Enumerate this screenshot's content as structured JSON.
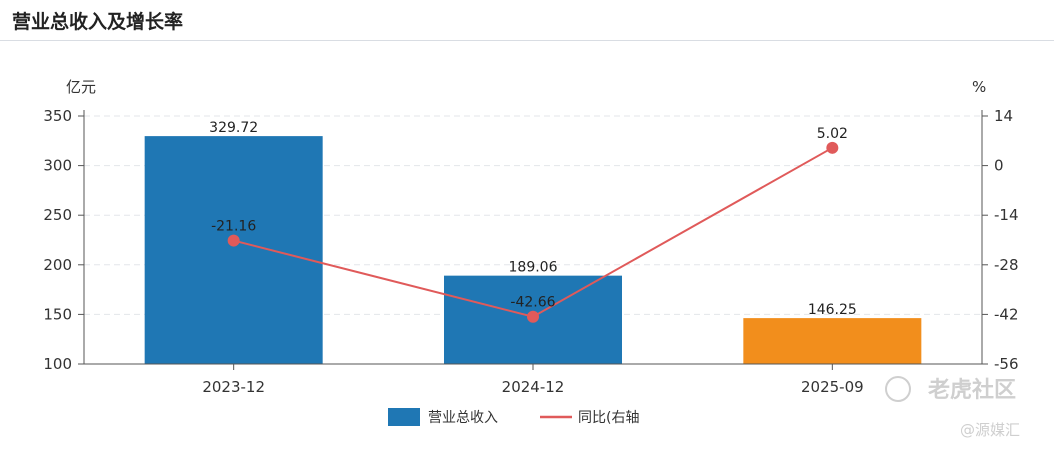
{
  "header": {
    "title": "营业总收入及增长率"
  },
  "watermark": {
    "main": "老虎社区",
    "sub": "@源媒汇"
  },
  "chart_data": {
    "type": "bar",
    "categories": [
      "2023-12",
      "2024-12",
      "2025-09"
    ],
    "series": [
      {
        "name": "营业总收入",
        "type": "bar",
        "axis": "left",
        "values": [
          329.72,
          189.06,
          146.25
        ],
        "labels": [
          "329.72",
          "189.06",
          "146.25"
        ],
        "colors": [
          "#1f77b4",
          "#1f77b4",
          "#f28e1c"
        ]
      },
      {
        "name": "同比(右轴",
        "type": "line",
        "axis": "right",
        "values": [
          -21.16,
          -42.66,
          5.02
        ],
        "labels": [
          "-21.16",
          "-42.66",
          "5.02"
        ],
        "color": "#e05a5a"
      }
    ],
    "left_axis": {
      "unit": "亿元",
      "ylim": [
        100,
        350
      ],
      "ticks": [
        "100",
        "150",
        "200",
        "250",
        "300",
        "350"
      ]
    },
    "right_axis": {
      "unit": "%",
      "ylim": [
        -56,
        14
      ],
      "ticks": [
        "-56",
        "-42",
        "-28",
        "-14",
        "0",
        "14"
      ]
    },
    "grid": true,
    "legend": "bottom-center"
  }
}
